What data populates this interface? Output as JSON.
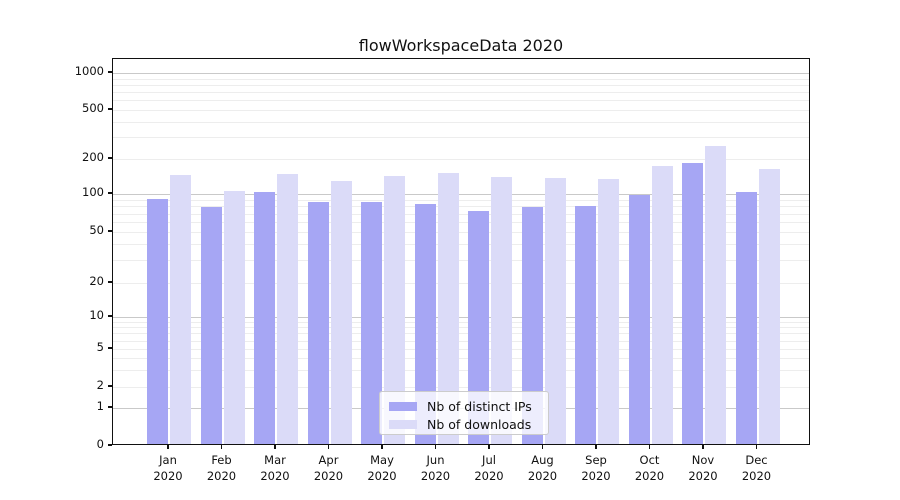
{
  "chart_data": {
    "type": "bar",
    "title": "flowWorkspaceData 2020",
    "categories": [
      "Jan",
      "Feb",
      "Mar",
      "Apr",
      "May",
      "Jun",
      "Jul",
      "Aug",
      "Sep",
      "Oct",
      "Nov",
      "Dec"
    ],
    "category_year_suffix": "2020",
    "series": [
      {
        "name": "Nb of distinct IPs",
        "color": "#a6a6f4",
        "values": [
          92,
          79,
          104,
          86,
          87,
          83,
          74,
          79,
          80,
          98,
          186,
          105
        ]
      },
      {
        "name": "Nb of downloads",
        "color": "#dbdbf8",
        "values": [
          145,
          107,
          148,
          130,
          143,
          153,
          140,
          137,
          134,
          175,
          255,
          163
        ]
      }
    ],
    "y_axis": {
      "scale": "symlog",
      "tick_values": [
        1000,
        500,
        200,
        100,
        50,
        20,
        10,
        5,
        2,
        1,
        0
      ],
      "tick_labels": [
        "1000",
        "500",
        "200",
        "100",
        "50",
        "20",
        "10",
        "5",
        "2",
        "1",
        "0"
      ],
      "range_top": 1300,
      "major_grid_values": [
        1,
        10,
        100,
        1000
      ],
      "minor_grid_values": [
        2,
        3,
        4,
        5,
        6,
        7,
        8,
        9,
        20,
        30,
        40,
        50,
        60,
        70,
        80,
        90,
        200,
        300,
        400,
        500,
        600,
        700,
        800,
        900
      ]
    },
    "grid": true,
    "legend_position": "lower center"
  },
  "colors": {
    "major_grid": "#c9c9c9",
    "minor_grid": "#ededed",
    "axis_frame": "#111111",
    "text": "#111111"
  }
}
